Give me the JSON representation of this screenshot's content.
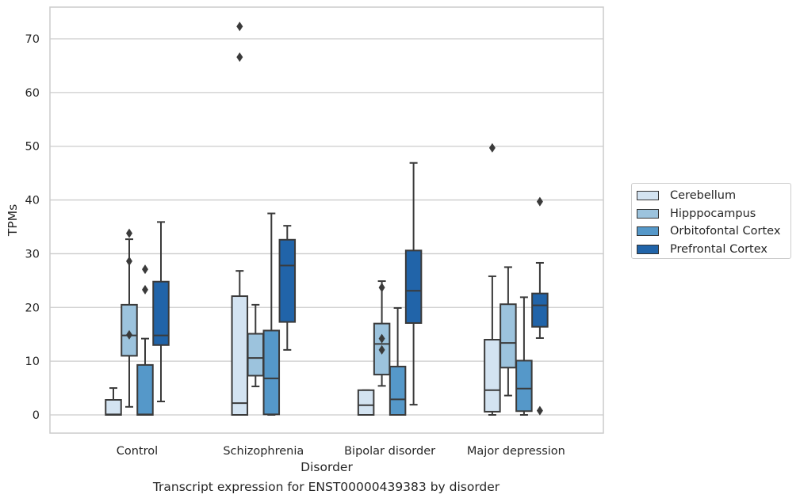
{
  "chart_data": {
    "type": "box",
    "xlabel": "Disorder",
    "ylabel": "TPMs",
    "caption": "Transcript expression for ENST00000439383 by disorder",
    "categories": [
      "Control",
      "Schizophrenia",
      "Bipolar disorder",
      "Major depression"
    ],
    "yticks": [
      0,
      10,
      20,
      30,
      40,
      50,
      60,
      70
    ],
    "ylim": [
      -3.5,
      75.5
    ],
    "grid": "horizontal",
    "legend_position": "right",
    "series": [
      {
        "name": "Cerebellum",
        "color": "#d3e3f1",
        "boxes": [
          {
            "whislo": 0,
            "q1": 0,
            "med": 0.1,
            "q3": 2.8,
            "whishi": 5.0,
            "fliers": []
          },
          {
            "whislo": 0,
            "q1": 0,
            "med": 2.2,
            "q3": 22.1,
            "whishi": 26.8,
            "fliers": [
              66.6,
              72.3
            ]
          },
          {
            "whislo": 0,
            "q1": 0,
            "med": 1.8,
            "q3": 4.6,
            "whishi": 4.6,
            "fliers": []
          },
          {
            "whislo": 0,
            "q1": 0.6,
            "med": 4.6,
            "q3": 14.0,
            "whishi": 25.8,
            "fliers": [
              49.7
            ]
          }
        ]
      },
      {
        "name": "Hipppocampus",
        "color": "#9cc3dd",
        "boxes": [
          {
            "whislo": 1.5,
            "q1": 11.0,
            "med": 14.8,
            "q3": 20.5,
            "whishi": 32.7,
            "fliers": [
              14.9,
              28.6,
              33.8
            ]
          },
          {
            "whislo": 5.3,
            "q1": 7.3,
            "med": 10.6,
            "q3": 15.1,
            "whishi": 20.5,
            "fliers": []
          },
          {
            "whislo": 5.4,
            "q1": 7.5,
            "med": 13.2,
            "q3": 17.0,
            "whishi": 24.9,
            "fliers": [
              12.1,
              14.2,
              23.7
            ]
          },
          {
            "whislo": 3.6,
            "q1": 8.8,
            "med": 13.4,
            "q3": 20.6,
            "whishi": 27.5,
            "fliers": []
          }
        ]
      },
      {
        "name": "Orbitofontal Cortex",
        "color": "#5598c9",
        "boxes": [
          {
            "whislo": 0,
            "q1": 0,
            "med": 0.1,
            "q3": 9.3,
            "whishi": 14.2,
            "fliers": [
              23.3,
              27.1
            ]
          },
          {
            "whislo": 0,
            "q1": 0.1,
            "med": 6.8,
            "q3": 15.7,
            "whishi": 37.5,
            "fliers": []
          },
          {
            "whislo": 0,
            "q1": 0,
            "med": 2.9,
            "q3": 9.0,
            "whishi": 19.9,
            "fliers": []
          },
          {
            "whislo": 0,
            "q1": 0.7,
            "med": 4.9,
            "q3": 10.1,
            "whishi": 21.9,
            "fliers": []
          }
        ]
      },
      {
        "name": "Prefrontal Cortex",
        "color": "#2164a9",
        "boxes": [
          {
            "whislo": 2.5,
            "q1": 13.0,
            "med": 14.8,
            "q3": 24.8,
            "whishi": 35.9,
            "fliers": []
          },
          {
            "whislo": 12.1,
            "q1": 17.3,
            "med": 27.8,
            "q3": 32.6,
            "whishi": 35.2,
            "fliers": []
          },
          {
            "whislo": 1.9,
            "q1": 17.1,
            "med": 23.1,
            "q3": 30.6,
            "whishi": 46.9,
            "fliers": []
          },
          {
            "whislo": 14.3,
            "q1": 16.4,
            "med": 20.4,
            "q3": 22.6,
            "whishi": 28.3,
            "fliers": [
              0.8,
              39.7
            ]
          }
        ]
      }
    ]
  }
}
